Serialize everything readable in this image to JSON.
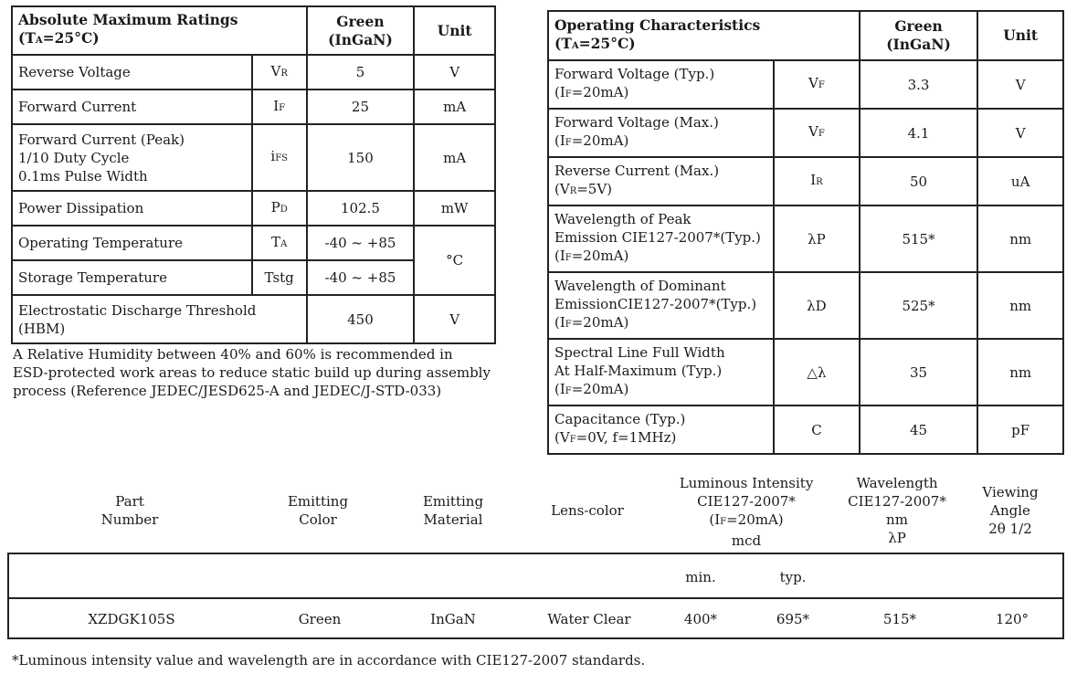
{
  "abs_max": {
    "title_line1": "Absolute Maximum Ratings",
    "title_ta": "(T",
    "title_ta_sub": "A",
    "title_ta_rest": "=25°C)",
    "col_green_l1": "Green",
    "col_green_l2": "(InGaN)",
    "col_unit": "Unit",
    "rows": [
      {
        "param": "Reverse Voltage",
        "sym": "V",
        "sym_sub": "R",
        "value": "5",
        "unit": "V"
      },
      {
        "param": "Forward Current",
        "sym": "I",
        "sym_sub": "F",
        "value": "25",
        "unit": "mA"
      },
      {
        "param_l1": "Forward Current (Peak)",
        "param_l2": "1/10 Duty Cycle",
        "param_l3": "0.1ms Pulse Width",
        "sym": "i",
        "sym_sub": "FS",
        "value": "150",
        "unit": "mA"
      },
      {
        "param": "Power Dissipation",
        "sym": "P",
        "sym_sub": "D",
        "value": "102.5",
        "unit": "mW"
      },
      {
        "param": "Operating Temperature",
        "sym": "T",
        "sym_sub": "A",
        "value": "-40 ~ +85",
        "unit": "°C"
      },
      {
        "param": "Storage Temperature",
        "sym": "Tstg",
        "value": "-40 ~ +85"
      },
      {
        "param_l1": "Electrostatic Discharge Threshold",
        "param_l2": "(HBM)",
        "value": "450",
        "unit": "V"
      }
    ],
    "note_l1": "A Relative Humidity between 40% and 60% is recommended in",
    "note_l2": "ESD-protected work areas to reduce static build up during assembly",
    "note_l3": "process (Reference JEDEC/JESD625-A and JEDEC/J-STD-033)"
  },
  "op_char": {
    "title_line1": "Operating Characteristics",
    "title_ta": "(T",
    "title_ta_sub": "A",
    "title_ta_rest": "=25°C)",
    "col_green_l1": "Green",
    "col_green_l2": "(InGaN)",
    "col_unit": "Unit",
    "rows": [
      {
        "l1": "Forward Voltage (Typ.)",
        "l2a": "(I",
        "l2s": "F",
        "l2b": "=20mA)",
        "sym": "V",
        "sym_sub": "F",
        "value": "3.3",
        "unit": "V"
      },
      {
        "l1": "Forward Voltage (Max.)",
        "l2a": "(I",
        "l2s": "F",
        "l2b": "=20mA)",
        "sym": "V",
        "sym_sub": "F",
        "value": "4.1",
        "unit": "V"
      },
      {
        "l1": "Reverse Current (Max.)",
        "l2a": "(V",
        "l2s": "R",
        "l2b": "=5V)",
        "sym": "I",
        "sym_sub": "R",
        "value": "50",
        "unit": "uA"
      },
      {
        "l1": "Wavelength of Peak",
        "l2": "Emission CIE127-2007*(Typ.)",
        "l3a": "(I",
        "l3s": "F",
        "l3b": "=20mA)",
        "sym": "λP",
        "value": "515*",
        "unit": "nm"
      },
      {
        "l1": "Wavelength of Dominant",
        "l2": "EmissionCIE127-2007*(Typ.)",
        "l3a": "(I",
        "l3s": "F",
        "l3b": "=20mA)",
        "sym": "λD",
        "value": "525*",
        "unit": "nm"
      },
      {
        "l1": "Spectral Line Full Width",
        "l2": "At Half-Maximum (Typ.)",
        "l3a": "(I",
        "l3s": "F",
        "l3b": "=20mA)",
        "sym": "△λ",
        "value": "35",
        "unit": "nm"
      },
      {
        "l1": "Capacitance (Typ.)",
        "l2a": "(V",
        "l2s": "F",
        "l2b": "=0V, f=1MHz)",
        "sym": "C",
        "value": "45",
        "unit": "pF"
      }
    ]
  },
  "part": {
    "h_part_l1": "Part",
    "h_part_l2": "Number",
    "h_color_l1": "Emitting",
    "h_color_l2": "Color",
    "h_mat_l1": "Emitting",
    "h_mat_l2": "Material",
    "h_lens": "Lens-color",
    "h_lum_l1": "Luminous  Intensity",
    "h_lum_l2": "CIE127-2007*",
    "h_lum_l3a": "(I",
    "h_lum_l3s": "F",
    "h_lum_l3b": "=20mA)",
    "h_lum_l4": "mcd",
    "h_wl_l1": "Wavelength",
    "h_wl_l2": "CIE127-2007*",
    "h_wl_l3": "nm",
    "h_wl_l4": "λP",
    "h_va_l1": "Viewing",
    "h_va_l2": "Angle",
    "h_va_l3": "2θ 1/2",
    "min": "min.",
    "typ": "typ.",
    "row": {
      "part_number": "XZDGK105S",
      "color": "Green",
      "material": "InGaN",
      "lens": "Water Clear",
      "lum_min": "400*",
      "lum_typ": "695*",
      "wavelength": "515*",
      "angle": "120°"
    },
    "footnote": "*Luminous intensity value and wavelength are in accordance with CIE127-2007 standards."
  }
}
